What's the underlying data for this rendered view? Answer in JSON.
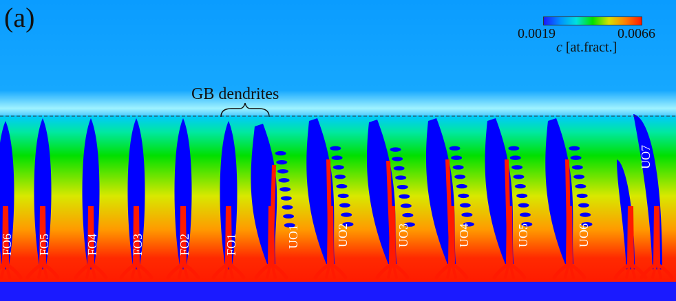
{
  "panel_label": "(a)",
  "colorbar": {
    "min_label": "0.0019",
    "max_label": "0.0066",
    "caption_symbol": "c",
    "caption_unit": "[at.fract.]",
    "colors": [
      "#1a1aff",
      "#0090ff",
      "#00e0e0",
      "#00e000",
      "#d8e000",
      "#ff8000",
      "#ff1a00"
    ]
  },
  "annotation": {
    "text": "GB dendrites"
  },
  "dendrite_labels": [
    "FO6",
    "FO5",
    "FO4",
    "FO3",
    "FO2",
    "FO1",
    "UO1",
    "UO2",
    "UO3",
    "UO4",
    "UO5",
    "UO6",
    "UO7"
  ],
  "colors": {
    "solid": "#0000ff",
    "liquid_top": "#0aa0ff",
    "liquid_bottom": "#1a1aff",
    "core": "#ff1a00"
  }
}
